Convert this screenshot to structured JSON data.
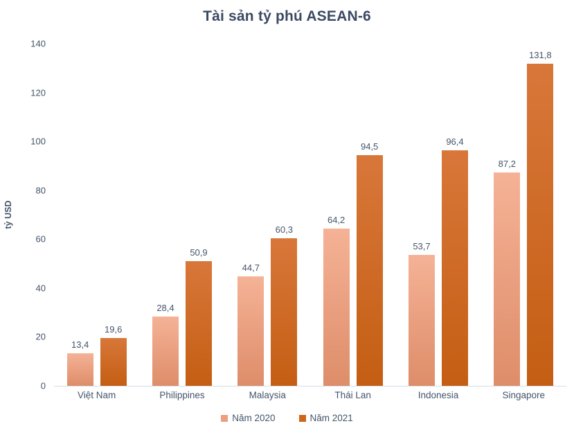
{
  "chart_data": {
    "type": "bar",
    "title": "Tài sản tỷ phú ASEAN-6",
    "ylabel": "tỷ USD",
    "xlabel": "",
    "categories": [
      "Việt Nam",
      "Philippines",
      "Malaysia",
      "Thái Lan",
      "Indonesia",
      "Singapore"
    ],
    "series": [
      {
        "name": "Năm 2020",
        "values": [
          13.4,
          28.4,
          44.7,
          64.2,
          53.7,
          87.2
        ],
        "labels": [
          "13,4",
          "28,4",
          "44,7",
          "64,2",
          "53,7",
          "87,2"
        ],
        "swatch_color": "#ee9e80",
        "gradient_top": "#f5b296",
        "gradient_bottom": "#de8d69"
      },
      {
        "name": "Năm 2021",
        "values": [
          19.6,
          50.9,
          60.3,
          94.5,
          96.4,
          131.8
        ],
        "labels": [
          "19,6",
          "50,9",
          "60,3",
          "94,5",
          "96,4",
          "131,8"
        ],
        "swatch_color": "#cd661b",
        "gradient_top": "#d8773a",
        "gradient_bottom": "#c45e13"
      }
    ],
    "yticks": [
      0,
      20,
      40,
      60,
      80,
      100,
      120,
      140
    ],
    "ylim": [
      0,
      140
    ],
    "grid": false,
    "legend_position": "bottom",
    "axis_line_color": "#d6dce4",
    "text_color": "#44546a",
    "title_color": "#3b4a61"
  }
}
